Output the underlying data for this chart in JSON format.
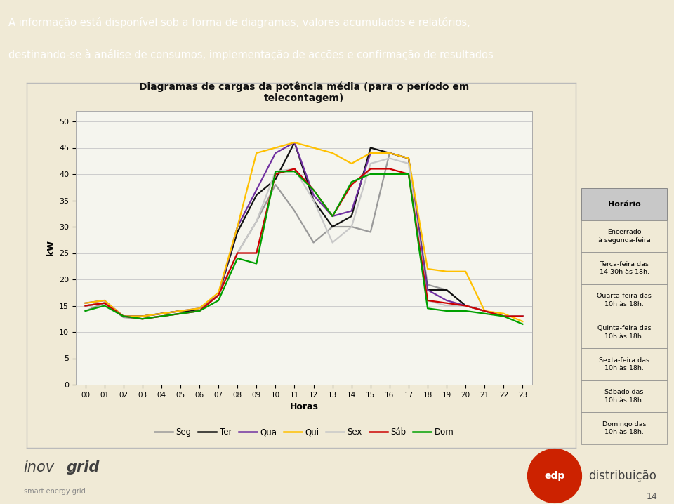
{
  "title": "Diagramas de cargas da potência média (para o período em\ntelecontagem)",
  "header_text_line1": "A informação está disponível sob a forma de diagramas, valores acumulados e relatórios,",
  "header_text_line2": "destinando-se à análise de consumos, implementação de acções e confirmação de resultados",
  "xlabel": "Horas",
  "ylabel": "kW",
  "xlim": [
    -0.5,
    23.5
  ],
  "ylim": [
    0,
    52
  ],
  "yticks": [
    0,
    5,
    10,
    15,
    20,
    25,
    30,
    35,
    40,
    45,
    50
  ],
  "xtick_labels": [
    "00",
    "01",
    "02",
    "03",
    "04",
    "05",
    "06",
    "07",
    "08",
    "09",
    "10",
    "11",
    "12",
    "13",
    "14",
    "15",
    "16",
    "17",
    "18",
    "19",
    "20",
    "21",
    "22",
    "23"
  ],
  "bg_color": "#f0ead6",
  "header_bg": "#8b1a1a",
  "chart_box_bg": "#f0ead6",
  "plot_bg": "#f5f5ee",
  "series": {
    "Seg": {
      "color": "#9a9a9a",
      "data": [
        14.0,
        15.5,
        12.8,
        12.5,
        13.0,
        13.5,
        14.0,
        17.0,
        25.0,
        31.0,
        38.0,
        33.0,
        27.0,
        30.0,
        30.0,
        29.0,
        44.0,
        43.0,
        19.0,
        18.0,
        15.0,
        14.0,
        13.0,
        13.0
      ]
    },
    "Ter": {
      "color": "#111111",
      "data": [
        15.0,
        15.5,
        13.0,
        13.0,
        13.5,
        14.0,
        14.0,
        17.0,
        29.0,
        36.0,
        39.0,
        46.0,
        35.0,
        30.0,
        32.0,
        45.0,
        44.0,
        43.0,
        18.0,
        18.0,
        15.0,
        14.0,
        13.0,
        13.0
      ]
    },
    "Qua": {
      "color": "#7030a0",
      "data": [
        15.5,
        16.0,
        13.0,
        13.0,
        13.5,
        14.0,
        14.5,
        17.0,
        30.0,
        37.0,
        44.0,
        46.0,
        36.0,
        32.0,
        33.0,
        44.0,
        44.0,
        43.0,
        18.0,
        16.0,
        15.0,
        14.0,
        13.0,
        13.0
      ]
    },
    "Qui": {
      "color": "#ffc000",
      "data": [
        15.5,
        16.0,
        13.0,
        13.0,
        13.5,
        14.0,
        14.5,
        17.5,
        30.0,
        44.0,
        45.0,
        46.0,
        45.0,
        44.0,
        42.0,
        44.0,
        44.0,
        43.0,
        22.0,
        21.5,
        21.5,
        14.0,
        13.5,
        12.0
      ]
    },
    "Sex": {
      "color": "#c8c8c8",
      "data": [
        15.0,
        15.5,
        13.0,
        12.5,
        13.0,
        13.5,
        14.0,
        17.0,
        25.0,
        31.0,
        40.5,
        41.0,
        35.0,
        27.0,
        30.0,
        42.0,
        43.0,
        42.0,
        16.0,
        15.0,
        15.0,
        14.0,
        13.0,
        13.0
      ]
    },
    "Sáb": {
      "color": "#cc0000",
      "data": [
        15.0,
        15.5,
        13.0,
        12.5,
        13.0,
        13.5,
        14.0,
        17.0,
        25.0,
        25.0,
        40.0,
        41.0,
        37.0,
        32.0,
        38.0,
        41.0,
        41.0,
        40.0,
        16.0,
        15.5,
        15.0,
        14.0,
        13.0,
        13.0
      ]
    },
    "Dom": {
      "color": "#00a000",
      "data": [
        14.0,
        15.0,
        13.0,
        12.5,
        13.0,
        13.5,
        14.0,
        16.0,
        24.0,
        23.0,
        40.5,
        40.5,
        37.0,
        32.0,
        38.5,
        40.0,
        40.0,
        40.0,
        14.5,
        14.0,
        14.0,
        13.5,
        13.0,
        11.5
      ]
    }
  },
  "legend_order": [
    "Seg",
    "Ter",
    "Qua",
    "Qui",
    "Sex",
    "Sáb",
    "Dom"
  ],
  "schedule_title": "Horário",
  "schedule_rows": [
    "Encerrado\nà segunda-feira",
    "Terça-feira das\n14.30h às 18h.",
    "Quarta-feira das\n10h às 18h.",
    "Quinta-feira das\n10h às 18h.",
    "Sexta-feira das\n10h às 18h.",
    "Sábado das\n10h às 18h.",
    "Domingo das\n10h às 18h."
  ],
  "inovgrid_text": [
    "inov",
    "grid"
  ],
  "inovgrid_sub": "smart energy grid",
  "edp_text": "edp",
  "distrib_text": "distribuição",
  "page_number": "14"
}
